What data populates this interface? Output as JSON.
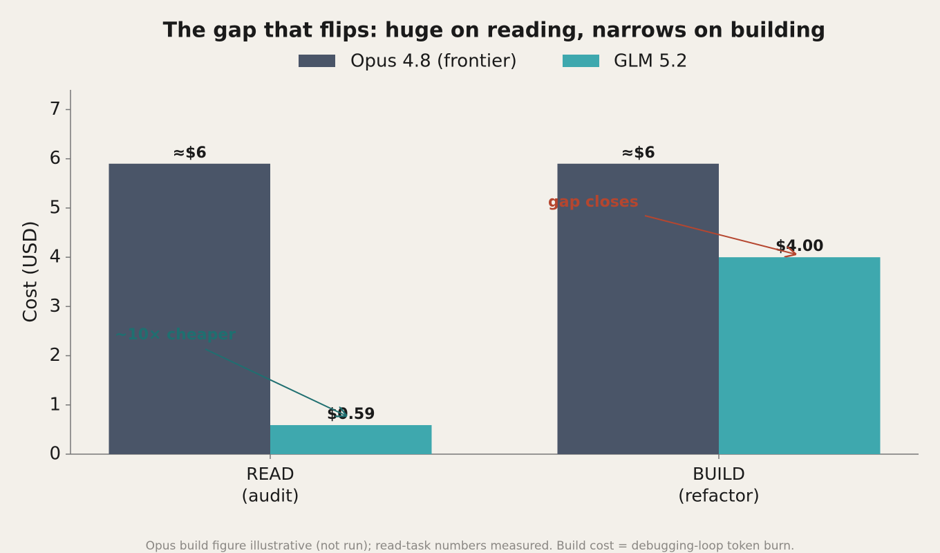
{
  "chart_data": {
    "type": "bar",
    "title": "The gap that flips: huge on reading, narrows on building",
    "ylabel": "Cost (USD)",
    "categories": [
      "READ\n(audit)",
      "BUILD\n(refactor)"
    ],
    "series": [
      {
        "name": "Opus 4.8 (frontier)",
        "color": "#4a5568",
        "values": [
          5.9,
          5.9
        ],
        "value_labels": [
          "≈$6",
          "≈$6"
        ]
      },
      {
        "name": "GLM 5.2",
        "color": "#3ea8ae",
        "values": [
          0.59,
          4.0
        ],
        "value_labels": [
          "$0.59",
          "$4.00"
        ]
      }
    ],
    "ylim": [
      0,
      7.4
    ],
    "yticks": [
      0,
      1,
      2,
      3,
      4,
      5,
      6,
      7
    ],
    "annotations": [
      {
        "text": "~10× cheaper",
        "color": "#1f6f70"
      },
      {
        "text": "gap closes",
        "color": "#b5462f"
      }
    ],
    "footnote": "Opus build figure illustrative (not run); read-task numbers measured. Build cost = debugging-loop token burn."
  }
}
